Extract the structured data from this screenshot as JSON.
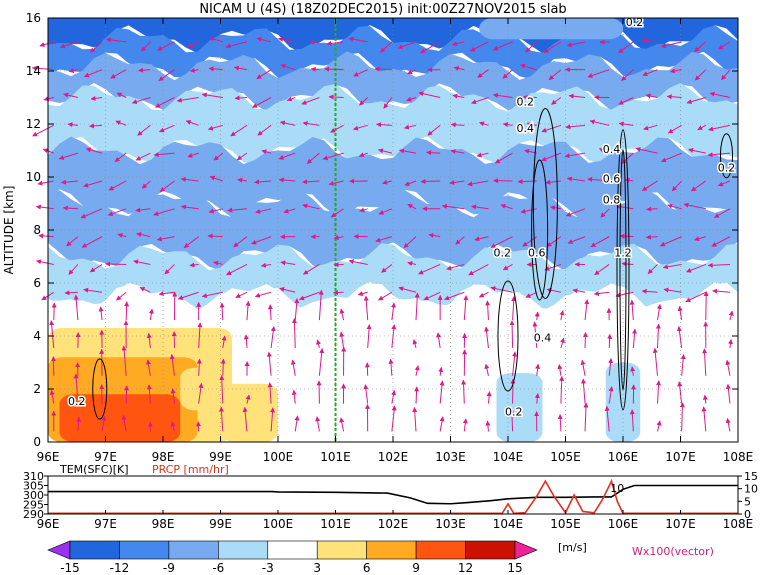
{
  "title": "NICAM U (4S) (18Z02DEC2015) init:00Z27NOV2015 slab",
  "chart_data": [
    {
      "type": "heatmap",
      "panel": "main",
      "ylabel": "ALTITUDE [km]",
      "x_ticks": [
        "96E",
        "97E",
        "98E",
        "99E",
        "100E",
        "101E",
        "102E",
        "103E",
        "104E",
        "105E",
        "106E",
        "107E",
        "108E"
      ],
      "y_ticks": [
        "0",
        "2",
        "4",
        "6",
        "8",
        "10",
        "12",
        "14",
        "16"
      ],
      "xlim": [
        96,
        108
      ],
      "ylim": [
        0,
        16
      ],
      "grid": true,
      "marker_line_lon": 101,
      "bands": [
        {
          "zmin": 15.2,
          "zmax": 16,
          "value": -13
        },
        {
          "zmin": 14.2,
          "zmax": 15.2,
          "value": -10
        },
        {
          "zmin": 13.0,
          "zmax": 14.2,
          "value": -7
        },
        {
          "zmin": 11.0,
          "zmax": 13.0,
          "value": -5
        },
        {
          "zmin": 9.0,
          "zmax": 11.0,
          "value": -7
        },
        {
          "zmin": 7.0,
          "zmax": 9.0,
          "value": -9
        },
        {
          "zmin": 5.5,
          "zmax": 7.0,
          "value": -5
        },
        {
          "zmin": 0,
          "zmax": 5.5,
          "value": 0
        }
      ],
      "patches": [
        {
          "x0": 96,
          "x1": 99.2,
          "z0": 0,
          "z1": 4.3,
          "value": 5
        },
        {
          "x0": 96,
          "x1": 98.6,
          "z0": 0,
          "z1": 3.2,
          "value": 7
        },
        {
          "x0": 96.2,
          "x1": 98.3,
          "z0": 0,
          "z1": 1.8,
          "value": 10
        },
        {
          "x0": 99.0,
          "x1": 100.0,
          "z0": 0,
          "z1": 2.2,
          "value": 4
        },
        {
          "x0": 98.3,
          "x1": 98.9,
          "z0": 1.2,
          "z1": 2.8,
          "value": 4
        },
        {
          "x0": 103.5,
          "x1": 106.0,
          "z0": 15.2,
          "z1": 16,
          "value": -8
        },
        {
          "x0": 103.8,
          "x1": 104.6,
          "z0": 0,
          "z1": 2.6,
          "value": -4
        },
        {
          "x0": 105.7,
          "x1": 106.3,
          "z0": 0,
          "z1": 3.0,
          "value": -4
        }
      ],
      "contour_labels": [
        {
          "lon": 106.2,
          "z": 15.7,
          "text": "0.2"
        },
        {
          "lon": 104.3,
          "z": 12.7,
          "text": "0.2"
        },
        {
          "lon": 104.3,
          "z": 11.7,
          "text": "0.4"
        },
        {
          "lon": 105.8,
          "z": 10.9,
          "text": "0.4"
        },
        {
          "lon": 105.8,
          "z": 9.8,
          "text": "0.6"
        },
        {
          "lon": 105.8,
          "z": 9.0,
          "text": "0.8"
        },
        {
          "lon": 107.8,
          "z": 10.2,
          "text": "0.2"
        },
        {
          "lon": 103.9,
          "z": 7.0,
          "text": "0.2"
        },
        {
          "lon": 104.5,
          "z": 7.0,
          "text": "0.6"
        },
        {
          "lon": 106.0,
          "z": 7.0,
          "text": "1.2"
        },
        {
          "lon": 104.6,
          "z": 3.8,
          "text": "0.4"
        },
        {
          "lon": 96.5,
          "z": 1.4,
          "text": "0.2"
        },
        {
          "lon": 104.1,
          "z": 1.0,
          "text": "0.2"
        }
      ],
      "colorbar": {
        "ticks": [
          "-15",
          "-12",
          "-9",
          "-6",
          "-3",
          "3",
          "6",
          "9",
          "12",
          "15"
        ],
        "unit": "[m/s]",
        "colors": [
          "#9933ee",
          "#2266dd",
          "#4488ee",
          "#77aaee",
          "#aadcf7",
          "#ffffff",
          "#ffe27a",
          "#ffaa22",
          "#ff5511",
          "#cc1100",
          "#ee2299"
        ]
      },
      "vector_label": "Wx100(vector)"
    },
    {
      "type": "line",
      "panel": "surface",
      "left_label": "TEM(SFC)[K]",
      "right_label": "PRCP [mm/hr]",
      "left_ticks": [
        "290",
        "295",
        "300",
        "305",
        "310"
      ],
      "right_ticks": [
        "0",
        "5",
        "10",
        "15"
      ],
      "x_ticks": [
        "96E",
        "97E",
        "98E",
        "99E",
        "100E",
        "101E",
        "102E",
        "103E",
        "104E",
        "105E",
        "106E",
        "107E",
        "108E"
      ],
      "annotation": "10",
      "series": [
        {
          "color": "#000000",
          "x": [
            96,
            99.9,
            100.0,
            101.0,
            101.9,
            102.3,
            102.6,
            103.0,
            103.3,
            103.7,
            104.0,
            104.5,
            105.0,
            105.5,
            105.8,
            106.0,
            106.2,
            108.0
          ],
          "values": [
            301.8,
            301.8,
            301.6,
            301.4,
            301.0,
            298.5,
            295.6,
            295.4,
            296.0,
            297.0,
            298.0,
            298.8,
            298.8,
            299.0,
            299.0,
            303.0,
            305.0,
            305.0
          ]
        },
        {
          "color": "#e03020",
          "x": [
            96,
            103.9,
            104.0,
            104.1,
            104.3,
            104.5,
            104.65,
            104.8,
            105.0,
            105.15,
            105.3,
            105.5,
            105.65,
            105.8,
            105.9,
            106.0,
            106.1,
            108.0
          ],
          "values": [
            0.3,
            0.3,
            4.0,
            0.3,
            0.5,
            7.0,
            13.0,
            7.0,
            0.5,
            7.5,
            1.0,
            0.5,
            6.0,
            13.0,
            5.0,
            0.3,
            0.3,
            0.3
          ]
        }
      ]
    }
  ]
}
